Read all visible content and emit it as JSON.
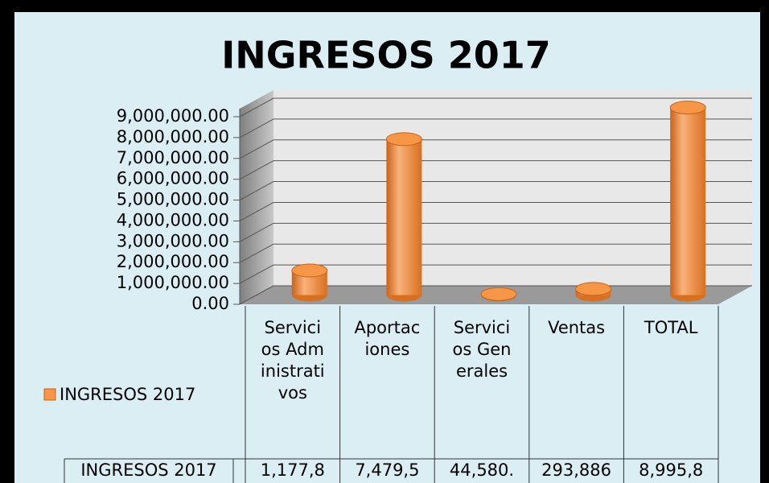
{
  "chart_data": {
    "type": "bar3d",
    "title": "INGRESOS 2017",
    "categories": [
      "Servicios Administrativos",
      "Aportaciones",
      "Servicios Generales",
      "Ventas",
      "TOTAL"
    ],
    "series": [
      {
        "name": "INGRESOS 2017",
        "color": "#f79646",
        "values": [
          1177800,
          7479500,
          44580,
          293886,
          8995800
        ],
        "value_labels": [
          "1,177,8",
          "7,479,5",
          "44,580.",
          "293,886",
          "8,995,8"
        ]
      }
    ],
    "ylim": [
      0,
      9000000
    ],
    "yticks": [
      {
        "value": 0,
        "label": "0.00"
      },
      {
        "value": 1000000,
        "label": "1,000,000.00"
      },
      {
        "value": 2000000,
        "label": "2,000,000.00"
      },
      {
        "value": 3000000,
        "label": "3,000,000.00"
      },
      {
        "value": 4000000,
        "label": "4,000,000.00"
      },
      {
        "value": 5000000,
        "label": "5,000,000.00"
      },
      {
        "value": 6000000,
        "label": "6,000,000.00"
      },
      {
        "value": 7000000,
        "label": "7,000,000.00"
      },
      {
        "value": 8000000,
        "label": "8,000,000.00"
      },
      {
        "value": 9000000,
        "label": "9,000,000.00"
      }
    ],
    "grid": true,
    "legend": "left",
    "data_table": true
  }
}
